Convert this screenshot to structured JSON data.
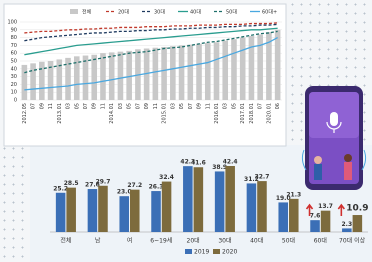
{
  "chart_data": [
    {
      "type": "combo",
      "categories": [
        "2012.05",
        "07",
        "09",
        "11",
        "2013.01",
        "03",
        "05",
        "07",
        "09",
        "11",
        "2014.01",
        "03",
        "05",
        "07",
        "09",
        "11",
        "2015.01",
        "03",
        "05",
        "07",
        "09",
        "11",
        "2016.01",
        "03",
        "05",
        "2017.01",
        "2018.01",
        "07",
        "2020.01",
        "06"
      ],
      "series": [
        {
          "name": "전체",
          "type": "bar",
          "color": "#c8c8c8",
          "values": [
            45,
            47,
            49,
            50,
            52,
            54,
            56,
            57,
            58,
            60,
            61,
            62,
            63,
            65,
            66,
            67,
            68,
            69,
            70,
            71,
            72,
            73,
            74,
            76,
            78,
            80,
            82,
            84,
            87,
            90
          ]
        },
        {
          "name": "20대",
          "type": "line",
          "dash": true,
          "color": "#c0392b",
          "values": [
            86,
            87,
            88,
            88,
            89,
            90,
            90,
            91,
            91,
            92,
            92,
            93,
            93,
            93,
            94,
            94,
            94,
            95,
            95,
            95,
            96,
            96,
            96,
            97,
            97,
            97,
            98,
            98,
            98,
            99
          ]
        },
        {
          "name": "30대",
          "type": "line",
          "dash": true,
          "color": "#1f3a5f",
          "values": [
            76,
            78,
            80,
            81,
            82,
            83,
            84,
            85,
            86,
            86,
            87,
            88,
            88,
            89,
            89,
            90,
            90,
            91,
            91,
            92,
            92,
            93,
            93,
            94,
            94,
            95,
            95,
            96,
            96,
            97
          ]
        },
        {
          "name": "40대",
          "type": "line",
          "dash": false,
          "color": "#2a9d8f",
          "values": [
            58,
            60,
            62,
            64,
            66,
            68,
            70,
            71,
            72,
            73,
            74,
            75,
            76,
            77,
            78,
            79,
            80,
            81,
            82,
            83,
            84,
            85,
            86,
            87,
            88,
            89,
            90,
            90,
            91,
            92
          ]
        },
        {
          "name": "50대",
          "type": "line",
          "dash": true,
          "color": "#1e6f6a",
          "values": [
            35,
            38,
            40,
            42,
            44,
            46,
            48,
            50,
            52,
            54,
            56,
            58,
            60,
            61,
            62,
            64,
            66,
            67,
            68,
            70,
            72,
            74,
            75,
            77,
            79,
            81,
            83,
            85,
            86,
            88
          ]
        },
        {
          "name": "60대+",
          "type": "line",
          "dash": false,
          "color": "#4aa8e0",
          "values": [
            13,
            14,
            15,
            16,
            17,
            18,
            20,
            21,
            22,
            24,
            26,
            28,
            30,
            32,
            34,
            36,
            38,
            40,
            42,
            44,
            46,
            48,
            52,
            56,
            60,
            64,
            68,
            70,
            74,
            80
          ]
        }
      ],
      "ylim": [
        0,
        100
      ],
      "yticks": [
        0,
        10,
        20,
        30,
        40,
        50,
        60,
        70,
        80,
        90,
        100
      ],
      "grid": true
    },
    {
      "type": "bar",
      "categories": [
        "전체",
        "남",
        "여",
        "6~19세",
        "20대",
        "30대",
        "40대",
        "50대",
        "60대",
        "70대 이상"
      ],
      "series": [
        {
          "name": "2019",
          "color": "#3b6fb6",
          "values": [
            25.2,
            27.6,
            23.0,
            26.3,
            42.3,
            38.9,
            31.2,
            19.0,
            7.6,
            2.3
          ],
          "value_labels": [
            "25.2",
            "27.6",
            "23.0",
            "26.3",
            "42.3",
            "38.9",
            "31.2",
            "19.0",
            "7.6",
            "2.3"
          ]
        },
        {
          "name": "2020",
          "color": "#7d6b3d",
          "values": [
            28.5,
            29.7,
            27.2,
            32.4,
            41.6,
            42.4,
            32.7,
            21.3,
            13.7,
            10.9
          ],
          "value_labels": [
            "28.5",
            "29.7",
            "27.2",
            "32.4",
            "41.6",
            "42.4",
            "32.7",
            "21.3",
            "13.7",
            "10.9"
          ]
        }
      ]
    }
  ]
}
